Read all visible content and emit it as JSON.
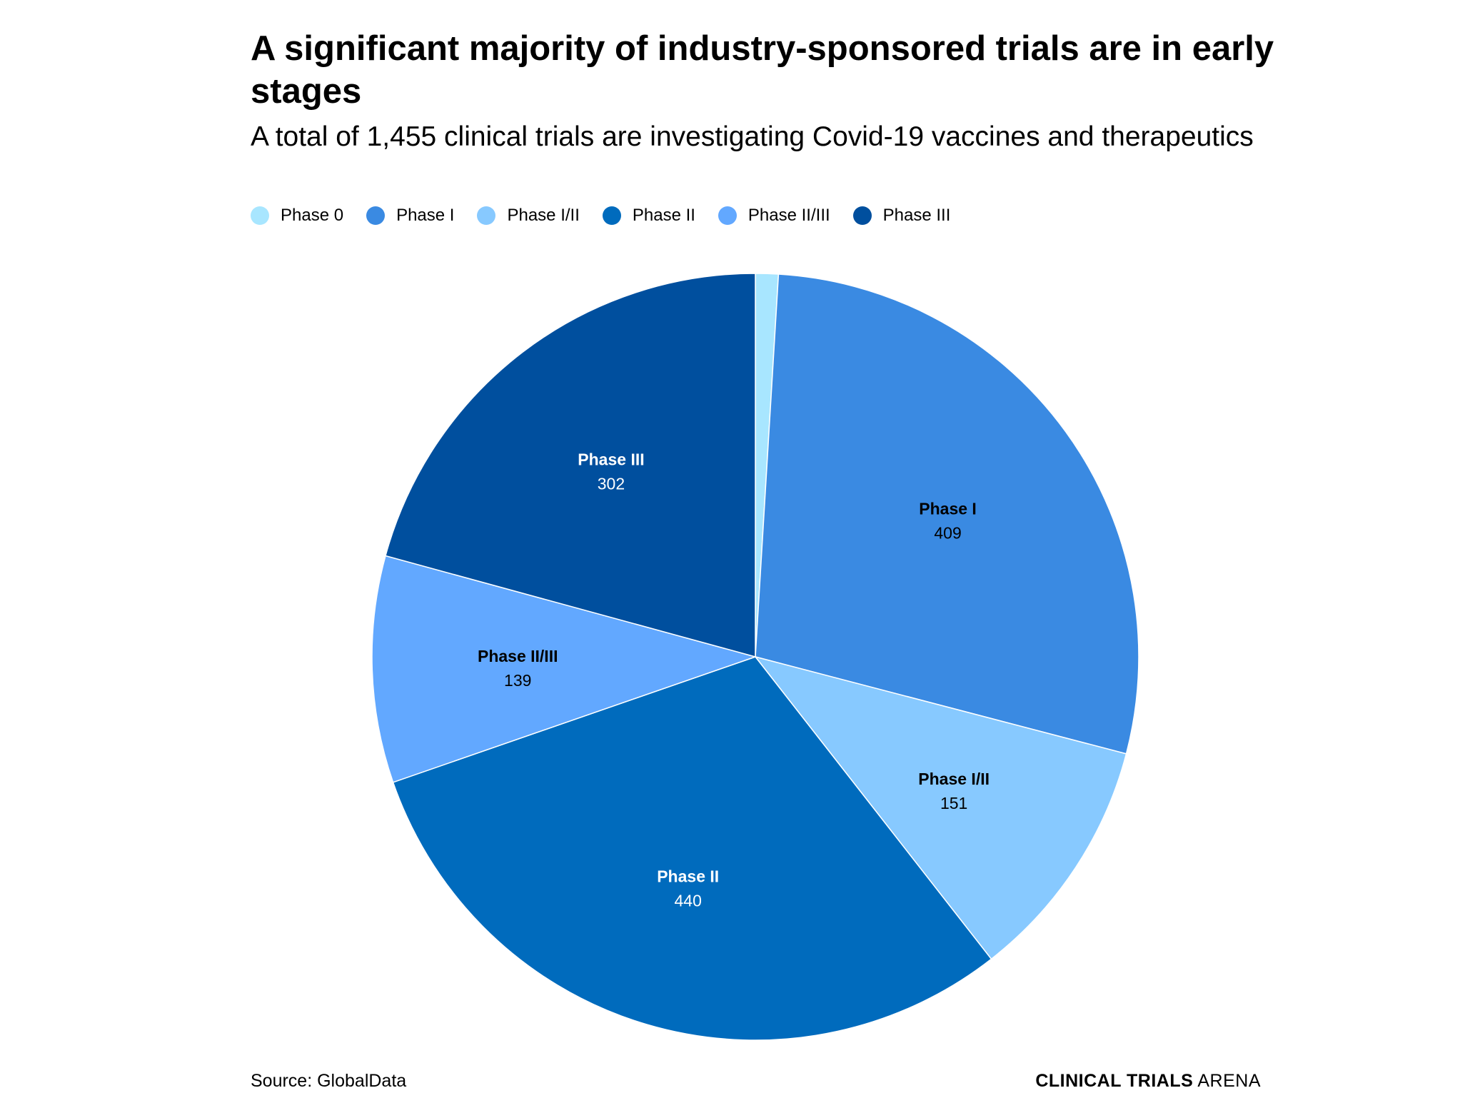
{
  "title": "A significant majority of industry-sponsored trials are in early stages",
  "subtitle": "A total of 1,455 clinical trials are investigating Covid-19 vaccines and therapeutics",
  "source": "Source: GlobalData",
  "brand": {
    "bold": "CLINICAL TRIALS",
    "light": "ARENA"
  },
  "chart_data": {
    "type": "pie",
    "title": "A significant majority of industry-sponsored trials are in early stages",
    "subtitle": "A total of 1,455 clinical trials are investigating Covid-19 vaccines and therapeutics",
    "legend_position": "top-left",
    "start": "12 o'clock, clockwise",
    "slices": [
      {
        "label": "Phase 0",
        "value": 14,
        "color": "#a8e6ff",
        "text_color": "#000000",
        "show_label": false
      },
      {
        "label": "Phase I",
        "value": 409,
        "color": "#3a8ae2",
        "text_color": "#000000",
        "show_label": true
      },
      {
        "label": "Phase I/II",
        "value": 151,
        "color": "#87c9ff",
        "text_color": "#000000",
        "show_label": true
      },
      {
        "label": "Phase II",
        "value": 440,
        "color": "#006bbd",
        "text_color": "#ffffff",
        "show_label": true
      },
      {
        "label": "Phase II/III",
        "value": 139,
        "color": "#62a8ff",
        "text_color": "#000000",
        "show_label": true
      },
      {
        "label": "Phase III",
        "value": 302,
        "color": "#004f9e",
        "text_color": "#ffffff",
        "show_label": true
      }
    ]
  }
}
